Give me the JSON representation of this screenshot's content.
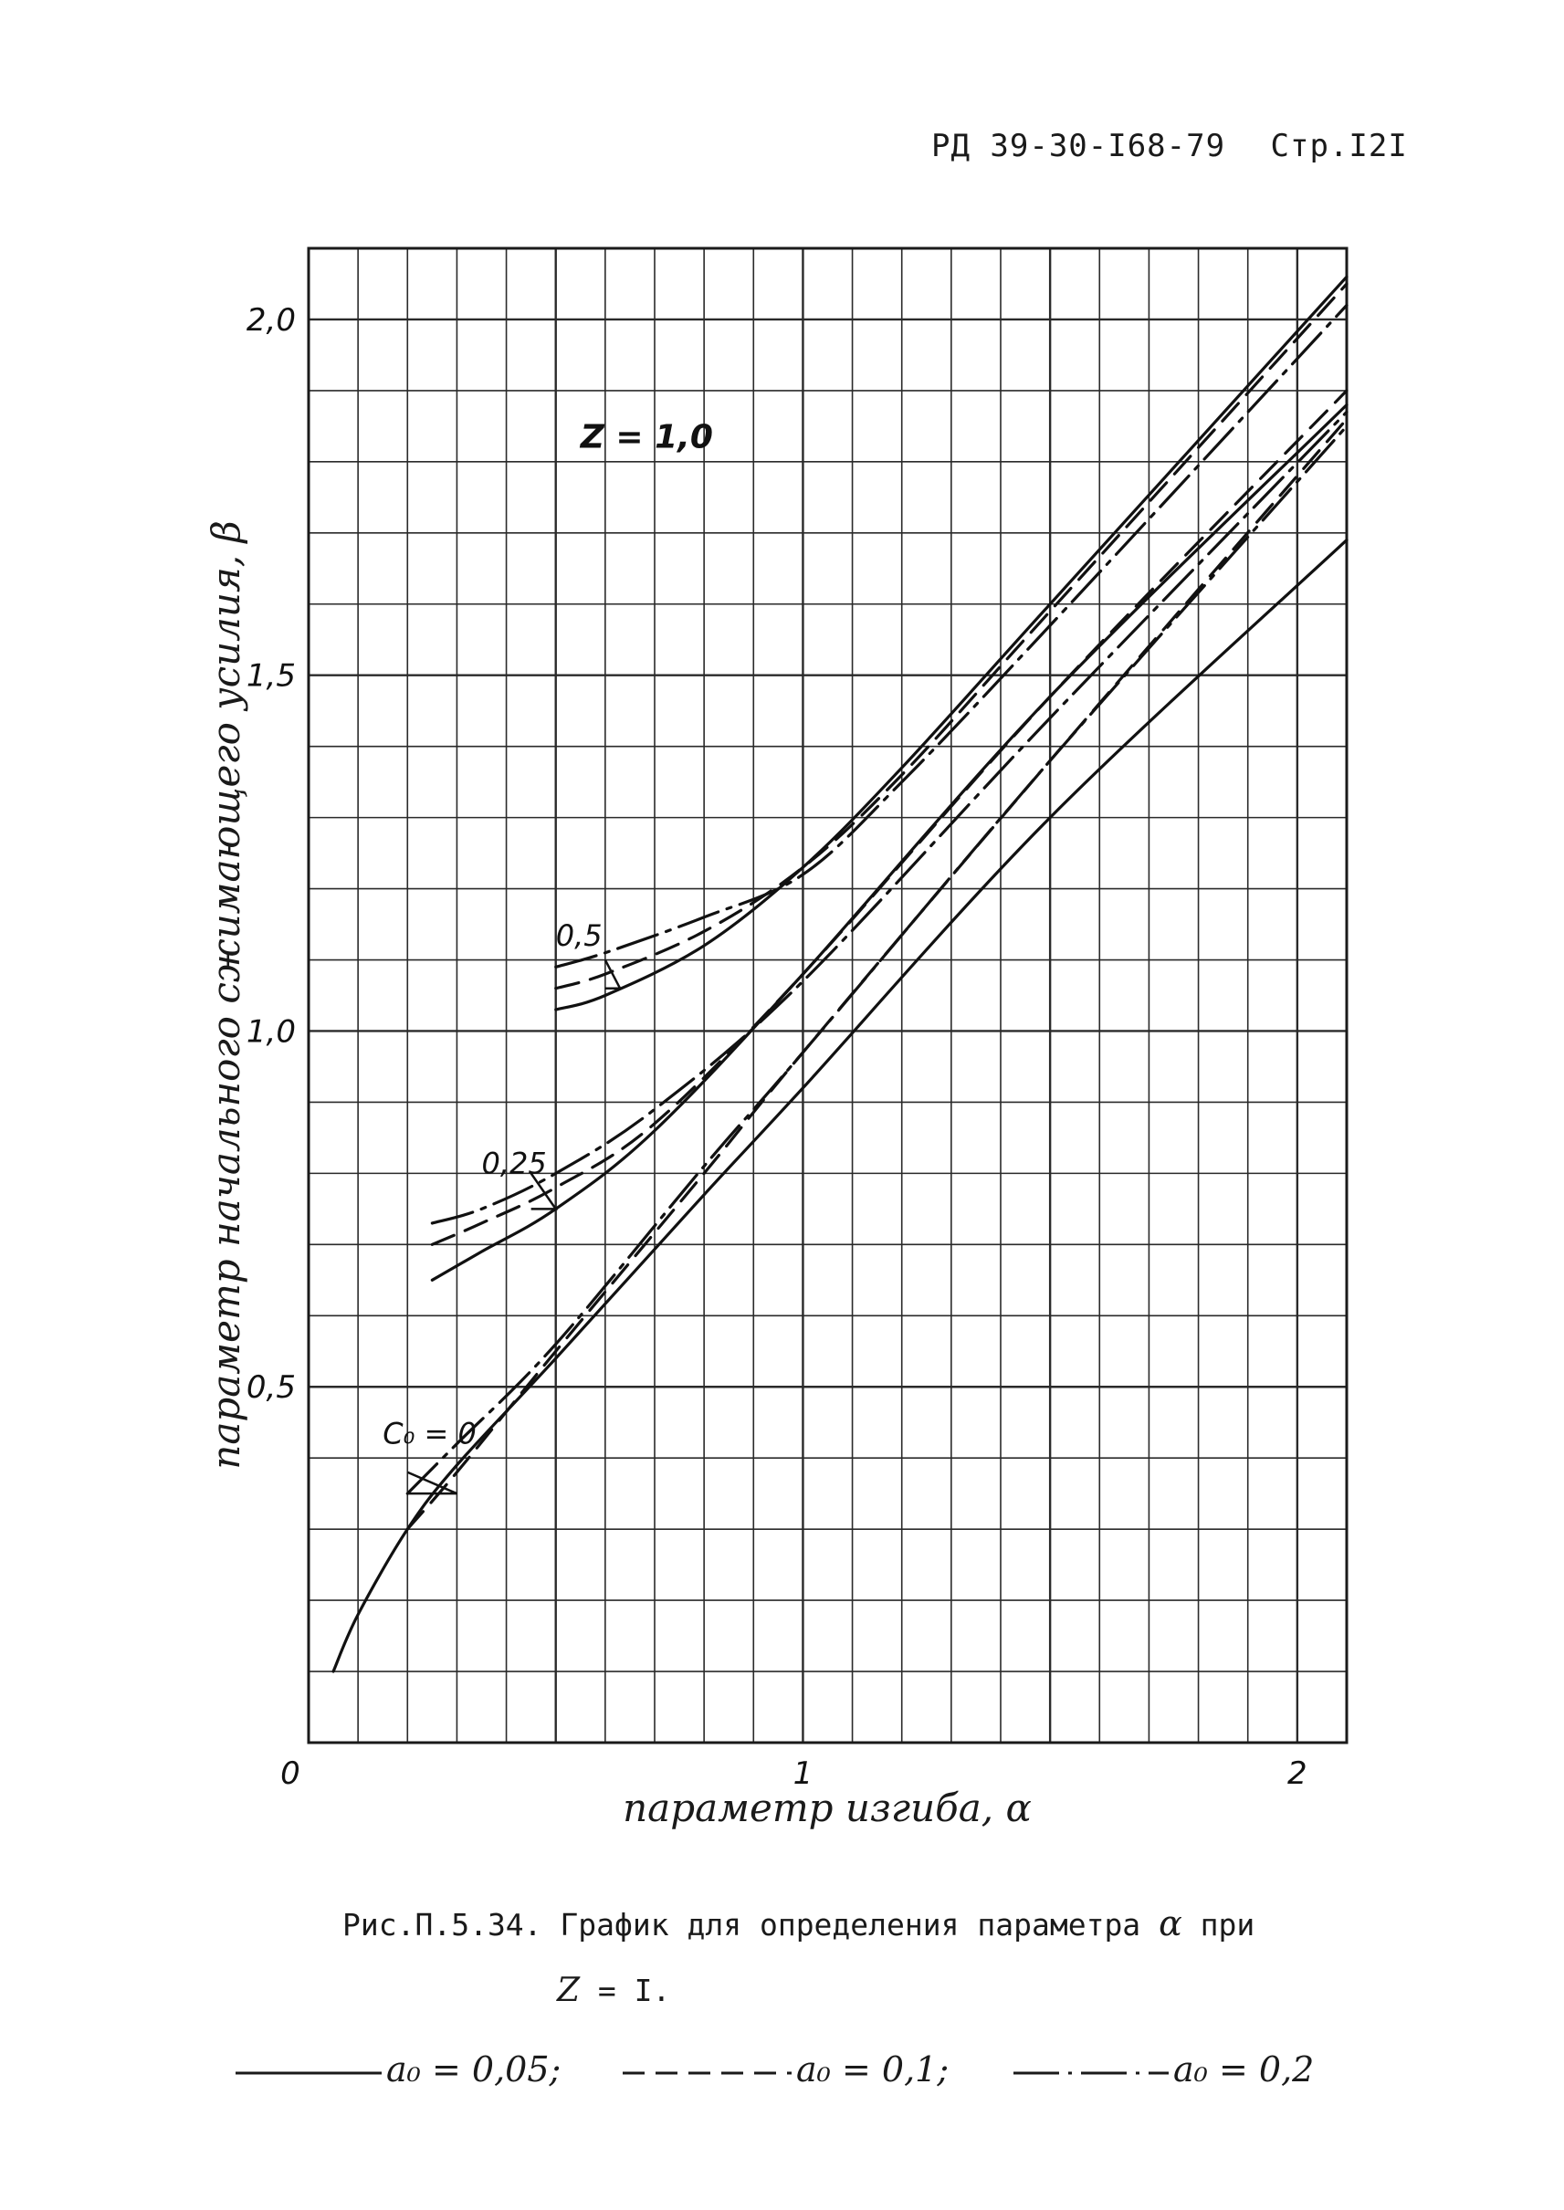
{
  "header": {
    "doc_code": "РД 39-30-I68-79",
    "page_label": "Стр.I2I"
  },
  "caption": {
    "line1_prefix": "Рис.П.5.34. График для определения параметра",
    "line1_symbol": "α",
    "line1_suffix": "при",
    "line2_symbol": "Z",
    "line2_value": "= I."
  },
  "legend": {
    "items": [
      {
        "label": "a₀ = 0,05;",
        "style": "solid"
      },
      {
        "label": "a₀ = 0,1;",
        "style": "dashed"
      },
      {
        "label": "a₀ = 0,2",
        "style": "dashdot"
      }
    ]
  },
  "chart_data": {
    "type": "line",
    "xlabel": "параметр изгиба, α",
    "ylabel": "параметр начального сжимающего усилия, β",
    "xlim": [
      0,
      2.1
    ],
    "ylim": [
      0,
      2.1
    ],
    "x_ticks": [
      {
        "value": 0,
        "label": "0"
      },
      {
        "value": 1,
        "label": "1"
      },
      {
        "value": 2,
        "label": "2"
      }
    ],
    "y_ticks": [
      {
        "value": 0.5,
        "label": "0,5"
      },
      {
        "value": 1.0,
        "label": "1,0"
      },
      {
        "value": 1.5,
        "label": "1,5"
      },
      {
        "value": 2.0,
        "label": "2,0"
      }
    ],
    "grid": true,
    "grid_step": 0.1,
    "annotations": {
      "z_label": {
        "text": "Z = 1,0",
        "x": 0.55,
        "y": 1.82
      },
      "group_labels": [
        {
          "text": "C₀ = 0",
          "x": 0.15,
          "y": 0.42,
          "tick_x": [
            0.2,
            0.3
          ],
          "tick_y": [
            0.35,
            0.38
          ]
        },
        {
          "text": "0,25",
          "x": 0.35,
          "y": 0.8,
          "tick_x": [
            0.45,
            0.5
          ],
          "tick_y": [
            0.75,
            0.8
          ]
        },
        {
          "text": "0,5",
          "x": 0.5,
          "y": 1.12,
          "tick_x": [
            0.6,
            0.63
          ],
          "tick_y": [
            1.06,
            1.1
          ]
        }
      ]
    },
    "series": [
      {
        "group": "C₀ = 0",
        "style": "solid",
        "x": [
          0.05,
          0.1,
          0.2,
          0.3,
          0.5,
          0.8,
          1.0,
          1.5,
          2.1
        ],
        "y": [
          0.1,
          0.18,
          0.3,
          0.39,
          0.54,
          0.77,
          0.92,
          1.3,
          1.69
        ]
      },
      {
        "group": "C₀ = 0",
        "style": "dashed",
        "x": [
          0.2,
          0.3,
          0.5,
          0.8,
          1.0,
          1.5,
          2.1
        ],
        "y": [
          0.3,
          0.38,
          0.55,
          0.8,
          0.97,
          1.38,
          1.86
        ]
      },
      {
        "group": "C₀ = 0",
        "style": "dashdot",
        "x": [
          0.2,
          0.3,
          0.5,
          0.8,
          1.0,
          1.5,
          2.1
        ],
        "y": [
          0.35,
          0.42,
          0.56,
          0.81,
          0.97,
          1.38,
          1.85
        ]
      },
      {
        "group": "0,25",
        "style": "solid",
        "x": [
          0.25,
          0.35,
          0.5,
          0.7,
          1.0,
          1.5,
          2.1
        ],
        "y": [
          0.65,
          0.69,
          0.75,
          0.86,
          1.08,
          1.47,
          1.88
        ]
      },
      {
        "group": "0,25",
        "style": "dashed",
        "x": [
          0.25,
          0.35,
          0.5,
          0.7,
          1.0,
          1.5,
          2.1
        ],
        "y": [
          0.7,
          0.73,
          0.78,
          0.87,
          1.08,
          1.47,
          1.9
        ]
      },
      {
        "group": "0,25",
        "style": "dashdot",
        "x": [
          0.25,
          0.35,
          0.5,
          0.7,
          1.0,
          1.5,
          2.1
        ],
        "y": [
          0.73,
          0.75,
          0.8,
          0.89,
          1.07,
          1.44,
          1.87
        ]
      },
      {
        "group": "0,5",
        "style": "solid",
        "x": [
          0.5,
          0.6,
          0.8,
          1.0,
          1.2,
          1.5,
          2.1
        ],
        "y": [
          1.03,
          1.05,
          1.12,
          1.23,
          1.37,
          1.6,
          2.06
        ]
      },
      {
        "group": "0,5",
        "style": "dashed",
        "x": [
          0.5,
          0.6,
          0.8,
          1.0,
          1.2,
          1.5,
          2.1
        ],
        "y": [
          1.06,
          1.08,
          1.14,
          1.23,
          1.36,
          1.59,
          2.05
        ]
      },
      {
        "group": "0,5",
        "style": "dashdot",
        "x": [
          0.5,
          0.6,
          0.8,
          1.0,
          1.2,
          1.5,
          2.1
        ],
        "y": [
          1.09,
          1.11,
          1.16,
          1.22,
          1.35,
          1.57,
          2.02
        ]
      }
    ]
  }
}
